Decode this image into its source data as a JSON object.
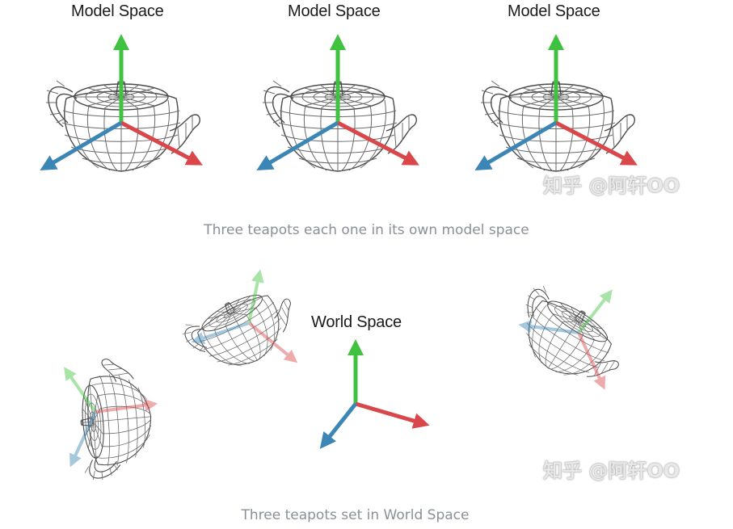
{
  "top_section": {
    "labels": [
      "Model Space",
      "Model Space",
      "Model Space"
    ],
    "caption": "Three teapots each one in its own model space",
    "watermark": "知乎 @阿轩OO"
  },
  "bottom_section": {
    "world_label": "World Space",
    "caption": "Three teapots set in World Space",
    "watermark": "知乎 @阿轩OO"
  },
  "axis_colors": {
    "x": "#d9474a",
    "y": "#3fc23f",
    "z": "#3b86b5"
  },
  "icons": [
    "teapot-wireframe",
    "axis-arrow-x",
    "axis-arrow-y",
    "axis-arrow-z"
  ]
}
